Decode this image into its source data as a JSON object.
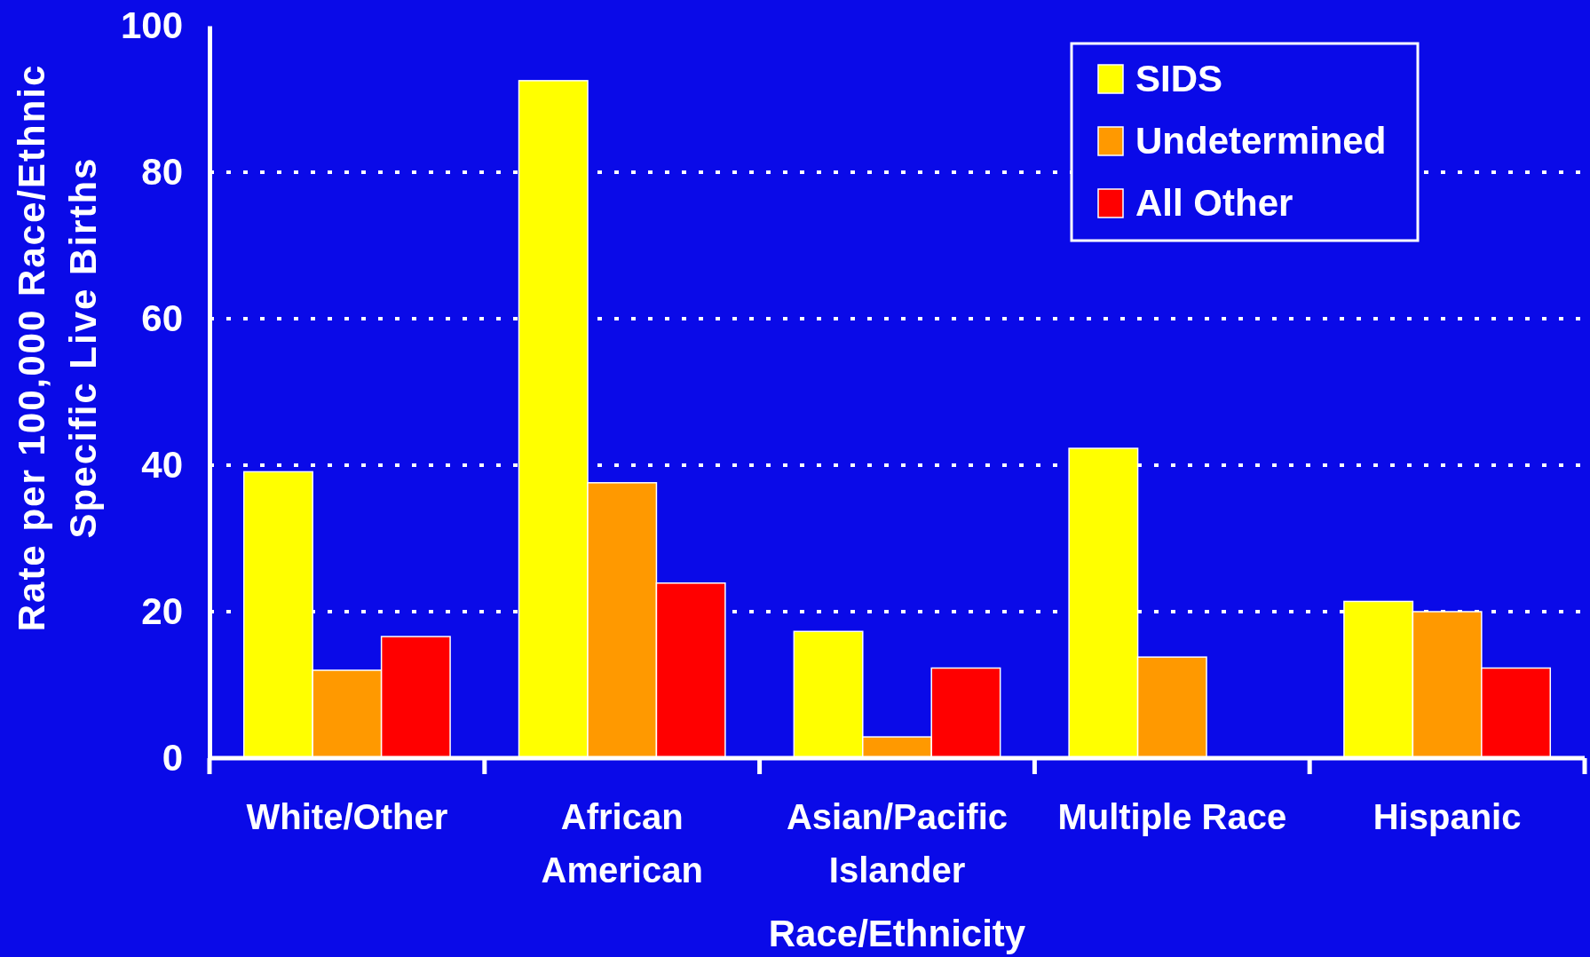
{
  "chart_data": {
    "type": "bar",
    "xlabel": "Race/Ethnicity",
    "ylabel": "Rate per 100,000 Race/Ethnic Specific Live Births",
    "categories": [
      "White/Other",
      "African American",
      "Asian/Pacific Islander",
      "Multiple Race",
      "Hispanic"
    ],
    "series": [
      {
        "name": "SIDS",
        "color": "#ffff00",
        "values": [
          39.1,
          92.5,
          17.3,
          42.3,
          21.4
        ]
      },
      {
        "name": "Undetermined",
        "color": "#ff9900",
        "values": [
          12.0,
          37.6,
          2.9,
          13.8,
          20.0
        ]
      },
      {
        "name": "All Other",
        "color": "#ff0000",
        "values": [
          16.6,
          23.9,
          12.3,
          null,
          12.3
        ]
      }
    ],
    "ylim": [
      0,
      100
    ],
    "yticks": [
      0,
      20,
      40,
      60,
      80,
      100
    ],
    "grid": "y",
    "legend": "top right"
  }
}
